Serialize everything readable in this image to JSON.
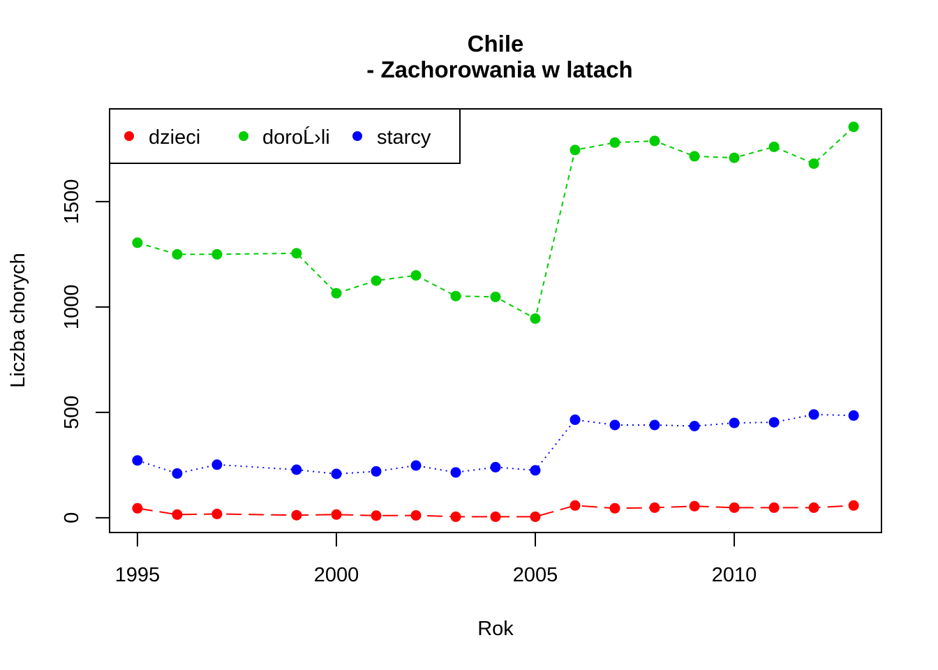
{
  "chart_data": {
    "type": "line",
    "title_line1": "Chile",
    "title_line2": "- Zachorowania w latach",
    "xlabel": "Rok",
    "ylabel": "Liczba chorych",
    "xlim": [
      1994.3,
      2013.7
    ],
    "ylim": [
      -70,
      1940
    ],
    "x_ticks": [
      1995,
      2000,
      2005,
      2010
    ],
    "y_ticks": [
      0,
      500,
      1000,
      1500
    ],
    "grid": false,
    "legend_position": "top-left",
    "series": [
      {
        "name": "dzieci",
        "color": "#FF0000",
        "dash": "long-dash",
        "points": [
          [
            1995,
            45
          ],
          [
            1996,
            15
          ],
          [
            1997,
            18
          ],
          [
            1999,
            12
          ],
          [
            2000,
            15
          ],
          [
            2001,
            10
          ],
          [
            2002,
            11
          ],
          [
            2003,
            5
          ],
          [
            2004,
            5
          ],
          [
            2005,
            5
          ],
          [
            2006,
            58
          ],
          [
            2007,
            45
          ],
          [
            2008,
            48
          ],
          [
            2009,
            55
          ],
          [
            2010,
            48
          ],
          [
            2011,
            48
          ],
          [
            2012,
            48
          ],
          [
            2013,
            58
          ]
        ]
      },
      {
        "name": "doroĹ›li",
        "color": "#00CD00",
        "dash": "dashed",
        "points": [
          [
            1995,
            1305
          ],
          [
            1996,
            1250
          ],
          [
            1997,
            1250
          ],
          [
            1999,
            1255
          ],
          [
            2000,
            1065
          ],
          [
            2001,
            1125
          ],
          [
            2002,
            1150
          ],
          [
            2003,
            1052
          ],
          [
            2004,
            1048
          ],
          [
            2005,
            945
          ],
          [
            2006,
            1745
          ],
          [
            2007,
            1780
          ],
          [
            2008,
            1788
          ],
          [
            2009,
            1715
          ],
          [
            2010,
            1708
          ],
          [
            2011,
            1760
          ],
          [
            2012,
            1680
          ],
          [
            2013,
            1855
          ]
        ]
      },
      {
        "name": "starcy",
        "color": "#0000FF",
        "dash": "dotted",
        "points": [
          [
            1995,
            272
          ],
          [
            1996,
            210
          ],
          [
            1997,
            252
          ],
          [
            1999,
            228
          ],
          [
            2000,
            208
          ],
          [
            2001,
            220
          ],
          [
            2002,
            248
          ],
          [
            2003,
            215
          ],
          [
            2004,
            240
          ],
          [
            2005,
            225
          ],
          [
            2006,
            465
          ],
          [
            2007,
            440
          ],
          [
            2008,
            440
          ],
          [
            2009,
            435
          ],
          [
            2010,
            450
          ],
          [
            2011,
            453
          ],
          [
            2012,
            490
          ],
          [
            2013,
            485
          ]
        ]
      }
    ]
  }
}
